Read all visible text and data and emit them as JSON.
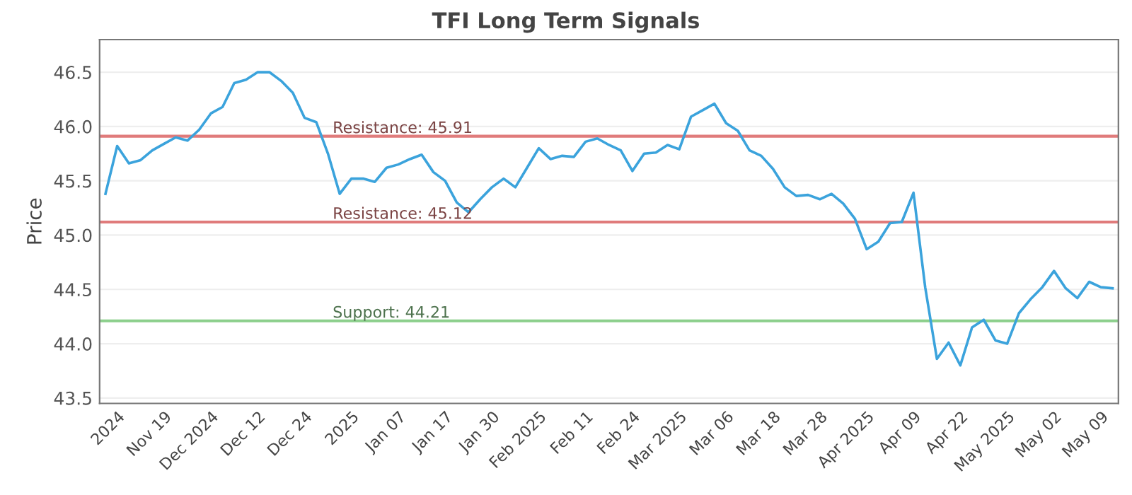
{
  "chart_data": {
    "type": "line",
    "title": "TFI Long Term Signals",
    "ylabel": "Price",
    "categories": [
      null,
      "2024",
      null,
      null,
      null,
      "Nov 19",
      null,
      null,
      null,
      "Dec 2024",
      null,
      null,
      null,
      "Dec 12",
      null,
      null,
      null,
      "Dec 24",
      null,
      null,
      null,
      "2025",
      null,
      null,
      null,
      "Jan 07",
      null,
      null,
      null,
      "Jan 17",
      null,
      null,
      null,
      "Jan 30",
      null,
      null,
      null,
      "Feb 2025",
      null,
      null,
      null,
      "Feb 11",
      null,
      null,
      null,
      "Feb 24",
      null,
      null,
      null,
      "Mar 2025",
      null,
      null,
      null,
      "Mar 06",
      null,
      null,
      null,
      "Mar 18",
      null,
      null,
      null,
      "Mar 28",
      null,
      null,
      null,
      "Apr 2025",
      null,
      null,
      null,
      "Apr 09",
      null,
      null,
      null,
      "Apr 22",
      null,
      null,
      null,
      "May 2025",
      null,
      null,
      null,
      "May 02",
      null,
      null,
      null,
      "May 09",
      null
    ],
    "series": [
      {
        "color": "#3ba3dc",
        "values": [
          45.38,
          45.82,
          45.66,
          45.69,
          45.78,
          45.84,
          45.9,
          45.87,
          45.97,
          46.12,
          46.18,
          46.4,
          46.43,
          46.5,
          46.5,
          46.42,
          46.31,
          46.08,
          46.04,
          45.75,
          45.38,
          45.52,
          45.52,
          45.49,
          45.62,
          45.65,
          45.7,
          45.74,
          45.58,
          45.5,
          45.3,
          45.21,
          45.33,
          45.44,
          45.52,
          45.44,
          45.62,
          45.8,
          45.7,
          45.73,
          45.72,
          45.86,
          45.89,
          45.83,
          45.78,
          45.59,
          45.75,
          45.76,
          45.83,
          45.79,
          46.09,
          46.15,
          46.21,
          46.03,
          45.96,
          45.78,
          45.73,
          45.61,
          45.44,
          45.36,
          45.37,
          45.33,
          45.38,
          45.29,
          45.15,
          44.87,
          44.94,
          45.11,
          45.12,
          45.39,
          44.52,
          43.86,
          44.01,
          43.8,
          44.15,
          44.22,
          44.03,
          44.0,
          44.28,
          44.41,
          44.52,
          44.67,
          44.51,
          44.42,
          44.57,
          44.52,
          44.51
        ]
      }
    ],
    "ylim": [
      43.45,
      46.8
    ],
    "yticks": [
      43.5,
      {
        "value": 44,
        "label": "44.0"
      },
      44.5,
      {
        "value": 45,
        "label": "45.0"
      },
      45.5,
      {
        "value": 46,
        "label": "46.0"
      },
      46.5
    ],
    "grid": "y",
    "marker": "none",
    "line_style": "solid",
    "ref_lines": [
      {
        "axis": "y",
        "value": 45.91,
        "label": "Resistance: 45.91",
        "color": "#e07b7b"
      },
      {
        "axis": "y",
        "value": 45.12,
        "label": "Resistance: 45.12",
        "color": "#e07b7b"
      },
      {
        "axis": "y",
        "value": 44.21,
        "label": "Support: 44.21",
        "color": "#8ccf8c"
      }
    ]
  }
}
